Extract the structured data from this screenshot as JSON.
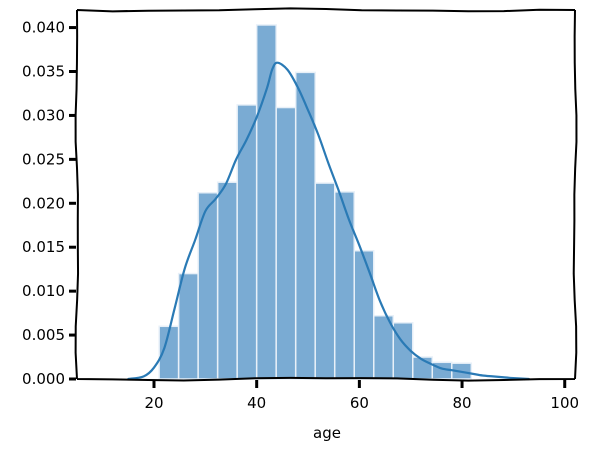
{
  "chart_data": {
    "type": "bar",
    "title": "",
    "xlabel": "age",
    "ylabel": "",
    "xlim": [
      5,
      102
    ],
    "ylim": [
      0,
      0.042
    ],
    "grid": false,
    "x_ticks": [
      {
        "value": 20,
        "label": "20"
      },
      {
        "value": 40,
        "label": "40"
      },
      {
        "value": 60,
        "label": "60"
      },
      {
        "value": 80,
        "label": "80"
      },
      {
        "value": 100,
        "label": "100"
      }
    ],
    "y_ticks": [
      {
        "value": 0.0,
        "label": "0.000"
      },
      {
        "value": 0.005,
        "label": "0.005"
      },
      {
        "value": 0.01,
        "label": "0.010"
      },
      {
        "value": 0.015,
        "label": "0.015"
      },
      {
        "value": 0.02,
        "label": "0.020"
      },
      {
        "value": 0.025,
        "label": "0.025"
      },
      {
        "value": 0.03,
        "label": "0.030"
      },
      {
        "value": 0.035,
        "label": "0.035"
      },
      {
        "value": 0.04,
        "label": "0.040"
      }
    ],
    "histogram": {
      "bin_edges": [
        21,
        24.8,
        28.6,
        32.4,
        36.2,
        40,
        43.8,
        47.6,
        51.4,
        55.2,
        59,
        62.8,
        66.6,
        70.4,
        74.2,
        78,
        81.8
      ],
      "density": [
        0.006,
        0.012,
        0.0212,
        0.0224,
        0.0312,
        0.0403,
        0.0309,
        0.0349,
        0.0223,
        0.0213,
        0.0146,
        0.0072,
        0.0064,
        0.0025,
        0.0019,
        0.0018
      ]
    },
    "kde": {
      "x": [
        15,
        18,
        20,
        22,
        24,
        26,
        28,
        30,
        32,
        34,
        36,
        38,
        40,
        42,
        43,
        44,
        46,
        48,
        50,
        52,
        54,
        56,
        58,
        60,
        62,
        64,
        66,
        68,
        70,
        72,
        74,
        76,
        78,
        80,
        82,
        84,
        86,
        88,
        90,
        93
      ],
      "y": [
        0.0,
        0.0003,
        0.0013,
        0.0035,
        0.008,
        0.0126,
        0.0158,
        0.0191,
        0.0205,
        0.0222,
        0.025,
        0.0272,
        0.0298,
        0.0331,
        0.0352,
        0.036,
        0.0352,
        0.0332,
        0.0306,
        0.0278,
        0.0245,
        0.0214,
        0.0181,
        0.0152,
        0.0121,
        0.0089,
        0.0064,
        0.0045,
        0.0032,
        0.0023,
        0.0017,
        0.0012,
        0.001,
        0.0008,
        0.0006,
        0.0004,
        0.0003,
        0.0002,
        0.0001,
        0.0
      ]
    },
    "colors": {
      "bar_fill": "#7aabd3",
      "bar_edge": "#e8f0f8",
      "kde_line": "#2a7ab5",
      "axis": "#000000"
    }
  }
}
